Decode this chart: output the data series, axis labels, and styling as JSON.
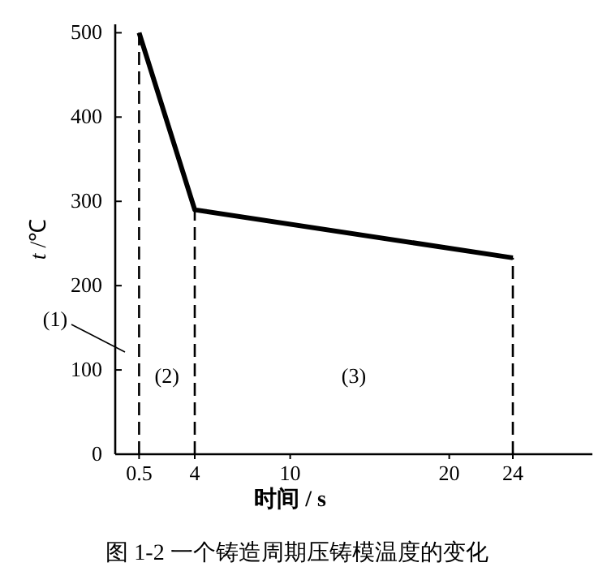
{
  "chart_data": {
    "type": "line",
    "xlabel": "时间 / s",
    "ylabel": "*t* /℃",
    "x": [
      0.5,
      4,
      24
    ],
    "series": [
      {
        "values": [
          500,
          290,
          233
        ],
        "color": "#000000",
        "line_style": "solid"
      }
    ],
    "ref_lines": [
      {
        "axis": "x",
        "value": 0.5,
        "color": "#000000",
        "line_style": "dashed"
      },
      {
        "axis": "x",
        "value": 4,
        "color": "#000000",
        "line_style": "dashed"
      },
      {
        "axis": "x",
        "value": 24,
        "color": "#000000",
        "line_style": "dashed"
      }
    ],
    "xlim": [
      -1,
      29
    ],
    "ylim": [
      0,
      510
    ],
    "xticks": [
      0.5,
      4,
      10,
      20,
      24
    ],
    "yticks": [
      0,
      100,
      200,
      300,
      400,
      500
    ],
    "annotations": [
      "(1)",
      "(2)",
      "(3)",
      "图 1-2 一个铸造周期压铸模温度的变化"
    ],
    "marker": "none"
  }
}
